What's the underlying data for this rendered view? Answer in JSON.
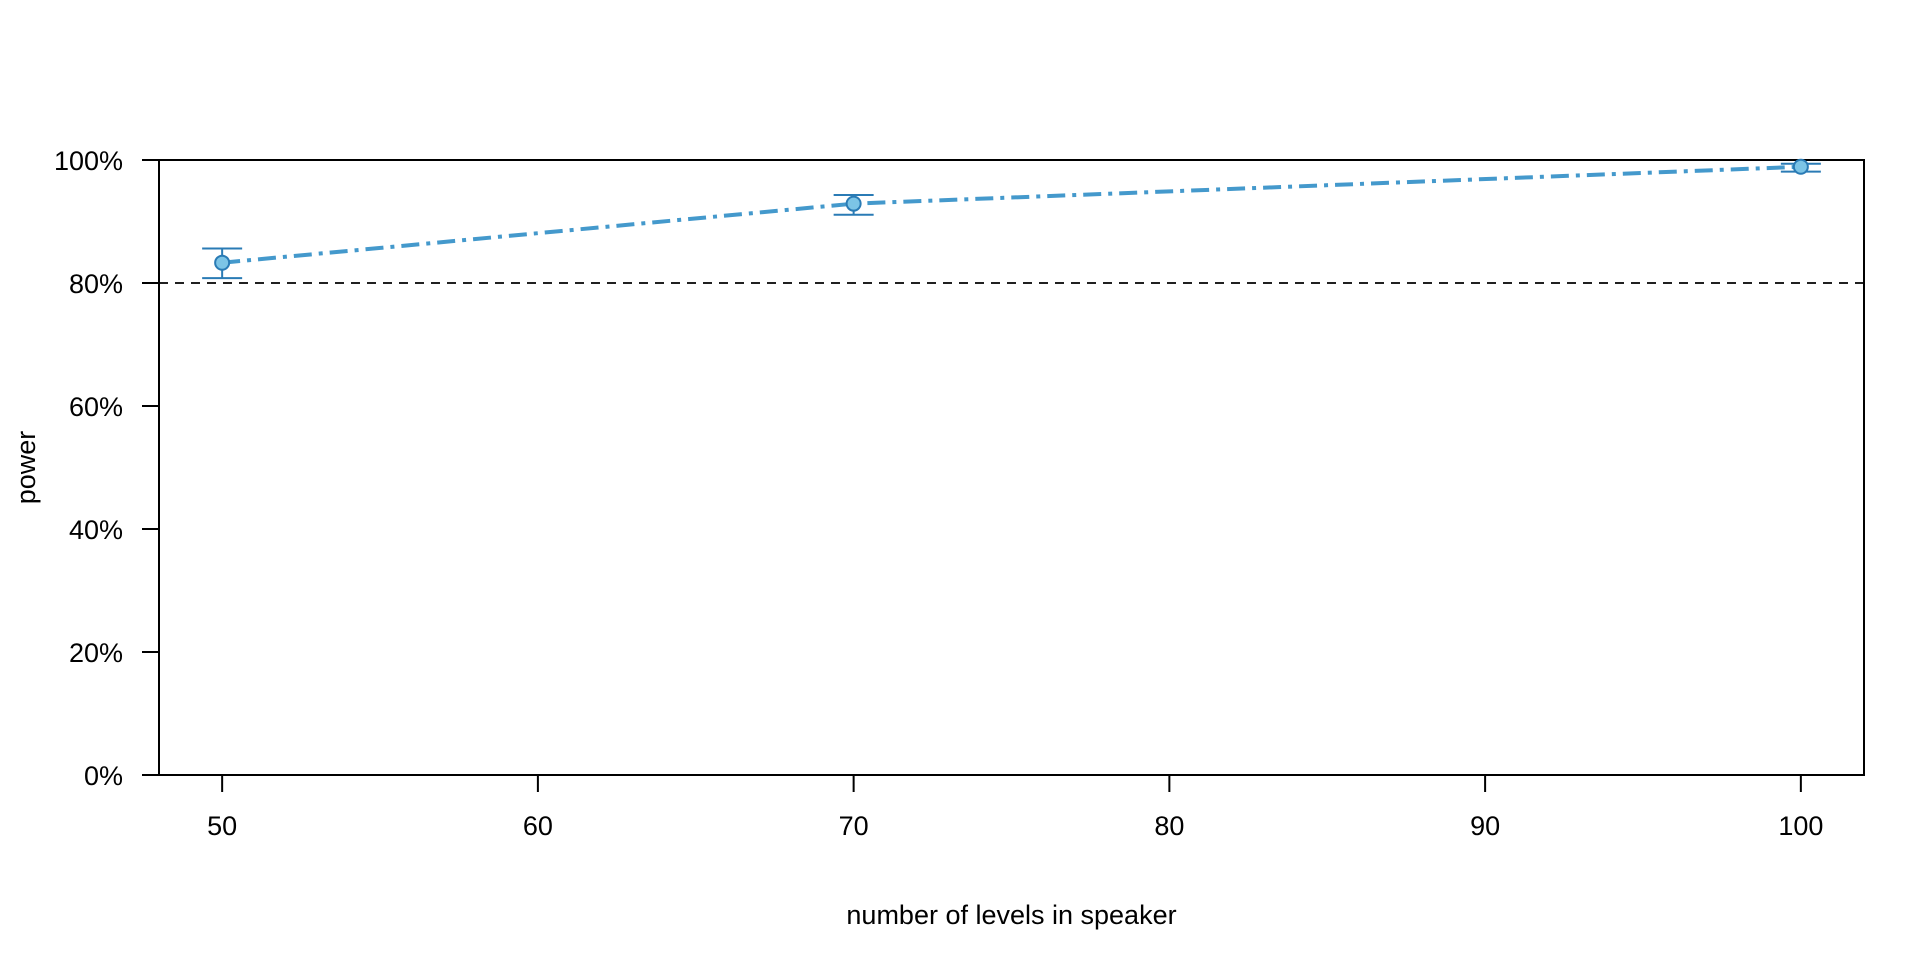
{
  "chart_data": {
    "type": "line",
    "title": "",
    "xlabel": "number of levels in speaker",
    "ylabel": "power",
    "xlim": [
      48,
      102
    ],
    "ylim": [
      0,
      100
    ],
    "x_ticks": [
      50,
      60,
      70,
      80,
      90,
      100
    ],
    "y_ticks": [
      0,
      20,
      40,
      60,
      80,
      100
    ],
    "y_tick_labels": [
      "0%",
      "20%",
      "40%",
      "60%",
      "80%",
      "100%"
    ],
    "reference_line": {
      "y": 80,
      "style": "dashed"
    },
    "grid": false,
    "legend": "none",
    "series": [
      {
        "color": "#4499cc",
        "line_style": "dash-dot",
        "x": [
          50,
          70,
          100
        ],
        "y": [
          83.3,
          92.9,
          98.9
        ],
        "ci_low": [
          80.8,
          91.1,
          98.1
        ],
        "ci_high": [
          85.6,
          94.3,
          99.4
        ]
      }
    ]
  }
}
